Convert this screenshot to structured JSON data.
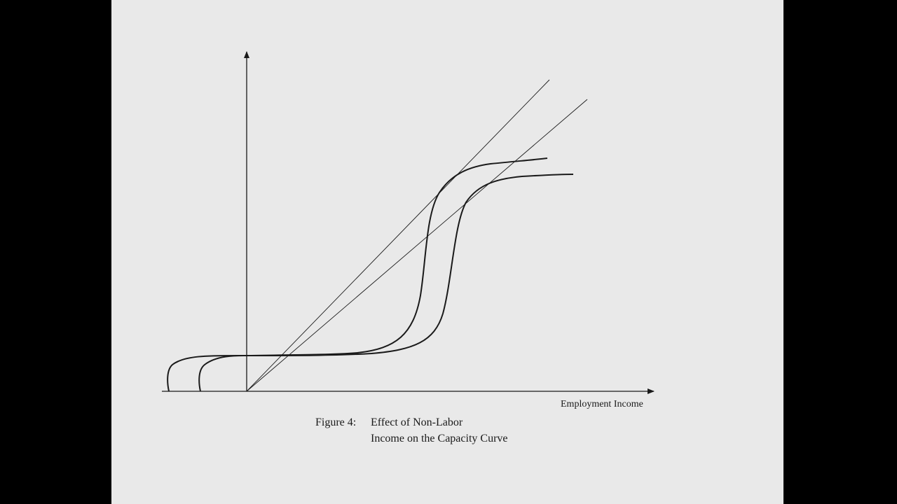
{
  "figure": {
    "x_axis_label": "Employment Income",
    "caption_number": "Figure 4:",
    "caption_line1": "Effect of Non-Labor",
    "caption_line2": "Income on the Capacity Curve"
  },
  "colors": {
    "background": "#000000",
    "slide": "#e9e9e9",
    "ink": "#1a1a1a"
  }
}
